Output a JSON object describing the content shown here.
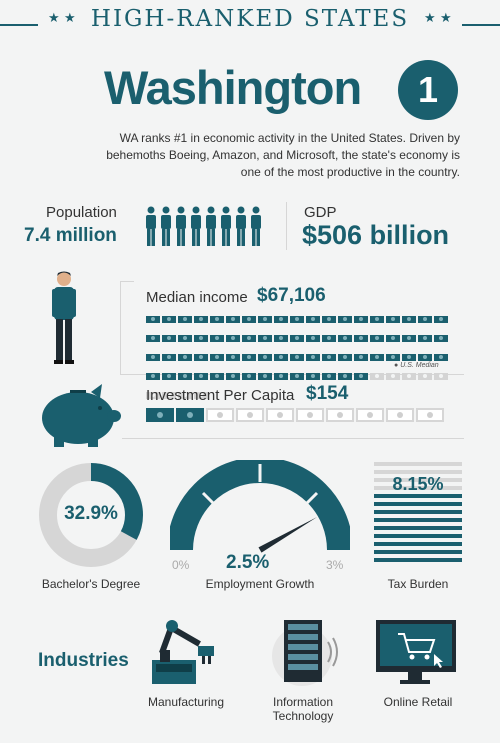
{
  "banner": {
    "title": "HIGH-RANKED STATES"
  },
  "state": {
    "name": "Washington",
    "rank": "1",
    "description": "WA ranks #1 in economic activity in the United States. Driven by behemoths Boeing, Amazon, and Microsoft, the state's economy is one of the most productive in the country."
  },
  "population": {
    "label": "Population",
    "value": "7.4 million"
  },
  "gdp": {
    "label": "GDP",
    "value": "$506 billion"
  },
  "median_income": {
    "label": "Median income",
    "value": "$67,106",
    "note": "U.S. Median",
    "bills_total": 80,
    "bills_filled": 71,
    "us_median_marker_index": 71
  },
  "investment": {
    "label": "Investment Per Capita",
    "value": "$154",
    "bills_total": 10,
    "bills_filled": 2
  },
  "bachelors": {
    "value": "32.9%",
    "label": "Bachelor's Degree",
    "fraction": 0.329
  },
  "employment": {
    "value": "2.5%",
    "label": "Employment Growth",
    "min_label": "0%",
    "max_label": "3%",
    "fraction": 0.833
  },
  "tax": {
    "value": "8.15%",
    "label": "Tax Burden"
  },
  "industries": {
    "heading": "Industries",
    "items": [
      {
        "label": "Manufacturing"
      },
      {
        "label": "Information Technology",
        "line1": "Information",
        "line2": "Technology"
      },
      {
        "label": "Online Retail"
      }
    ]
  },
  "colors": {
    "teal": "#1a5f6e",
    "light": "#d6d6d6",
    "bg": "#f3f4f4"
  }
}
